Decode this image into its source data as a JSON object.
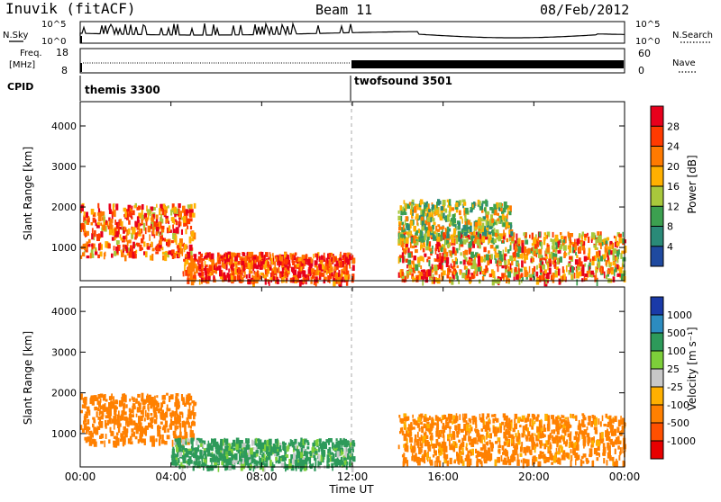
{
  "header": {
    "station": "Inuvik (fitACF)",
    "beam": "Beam 11",
    "date": "08/Feb/2012"
  },
  "top_panels": {
    "sky_label": "N.Sky",
    "sky_ticks": [
      "10^5",
      "10^0"
    ],
    "search_label": "N.Search",
    "search_ticks": [
      "10^5",
      "10^0"
    ],
    "freq_label_1": "Freq.",
    "freq_label_2": "[MHz]",
    "freq_ticks": [
      "18",
      "8"
    ],
    "nave_label": "Nave",
    "nave_ticks": [
      "60",
      "0"
    ],
    "cpid_label": "CPID",
    "cpid_1": "themis 3300",
    "cpid_2": "twofsound 3501"
  },
  "axes": {
    "ylabel": "Slant Range [km]",
    "xlabel": "Time UT",
    "yticks": [
      "4000",
      "3000",
      "2000",
      "1000"
    ],
    "xticks": [
      "00:00",
      "04:00",
      "08:00",
      "12:00",
      "16:00",
      "20:00",
      "00:00"
    ]
  },
  "power_colorbar": {
    "label": "Power [dB]",
    "ticks": [
      "28",
      "24",
      "20",
      "16",
      "12",
      "8",
      "4"
    ],
    "colors": [
      "#e8001c",
      "#ff3a00",
      "#ff7a00",
      "#ffb000",
      "#a8c83c",
      "#3ca050",
      "#2a8a78",
      "#1f4aa0",
      "#1010e0"
    ]
  },
  "velocity_colorbar": {
    "label": "Velocity [m s⁻¹]",
    "ticks": [
      "1000",
      "500",
      "100",
      "25",
      "-25",
      "-100",
      "-500",
      "-1000"
    ],
    "colors": [
      "#1a3aa8",
      "#2c8cc0",
      "#2d9a5a",
      "#7dcf3a",
      "#c8c8c8",
      "#ffb000",
      "#ff8000",
      "#ff5000",
      "#e80000"
    ]
  },
  "chart_data": [
    {
      "type": "heatmap",
      "title": "Power",
      "xlabel": "Time UT",
      "ylabel": "Slant Range [km]",
      "xlim": [
        "00:00",
        "24:00"
      ],
      "ylim": [
        180,
        4600
      ],
      "colorbar_label": "Power [dB]",
      "colorbar_range": [
        0,
        32
      ],
      "features": [
        {
          "time_range": [
            "00:00",
            "05:00"
          ],
          "range_km": [
            800,
            2100
          ],
          "power_db": [
            16,
            32
          ]
        },
        {
          "time_range": [
            "04:30",
            "12:00"
          ],
          "range_km": [
            200,
            900
          ],
          "power_db": [
            20,
            32
          ]
        },
        {
          "time_range": [
            "14:00",
            "24:00"
          ],
          "range_km": [
            200,
            1400
          ],
          "power_db": [
            12,
            32
          ]
        },
        {
          "time_range": [
            "14:00",
            "19:00"
          ],
          "range_km": [
            1200,
            2200
          ],
          "power_db": [
            8,
            24
          ]
        }
      ]
    },
    {
      "type": "heatmap",
      "title": "Velocity",
      "xlabel": "Time UT",
      "ylabel": "Slant Range [km]",
      "xlim": [
        "00:00",
        "24:00"
      ],
      "ylim": [
        180,
        4600
      ],
      "colorbar_label": "Velocity [m s-1]",
      "colorbar_range": [
        -1000,
        1000
      ],
      "features": [
        {
          "time_range": [
            "00:00",
            "05:00"
          ],
          "range_km": [
            800,
            2000
          ],
          "velocity_ms": [
            -500,
            -100
          ]
        },
        {
          "time_range": [
            "04:00",
            "12:00"
          ],
          "range_km": [
            200,
            900
          ],
          "velocity_ms": [
            -25,
            500
          ]
        },
        {
          "time_range": [
            "14:00",
            "24:00"
          ],
          "range_km": [
            300,
            1500
          ],
          "velocity_ms": [
            -500,
            -25
          ]
        }
      ]
    }
  ]
}
